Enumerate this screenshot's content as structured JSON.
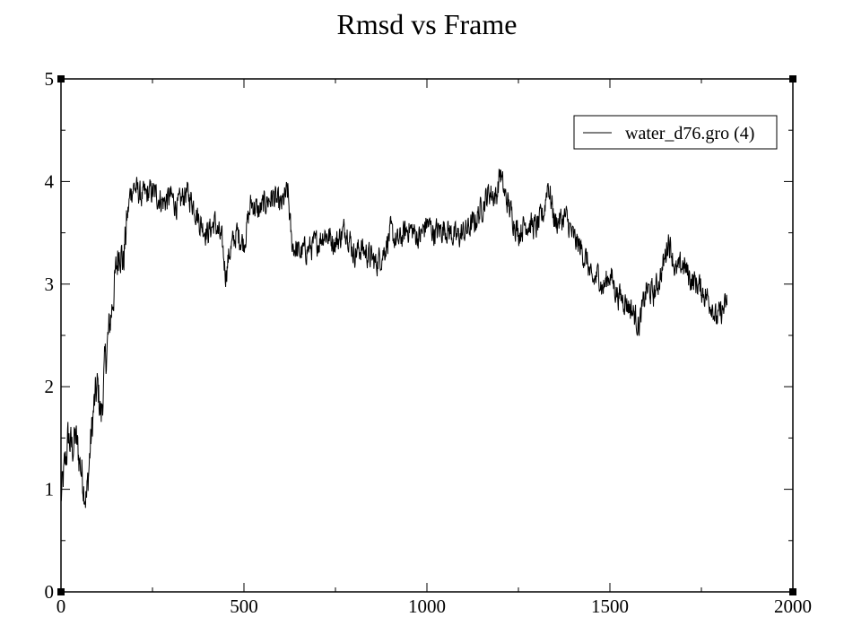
{
  "chart_data": {
    "type": "line",
    "title": "Rmsd vs Frame",
    "xlabel": "",
    "ylabel": "",
    "xlim": [
      0,
      2000
    ],
    "ylim": [
      0,
      5
    ],
    "x_major_ticks": [
      0,
      500,
      1000,
      1500,
      2000
    ],
    "x_tick_labels": [
      "0",
      "500",
      "1000",
      "1500",
      "2000"
    ],
    "y_major_ticks": [
      0,
      1,
      2,
      3,
      4,
      5
    ],
    "y_tick_labels": [
      "0",
      "1",
      "2",
      "3",
      "4",
      "5"
    ],
    "grid": false,
    "legend_position": "top-right",
    "series": [
      {
        "name": "water_d76.gro (4)",
        "color": "#000000",
        "x": [
          0,
          10,
          20,
          30,
          40,
          50,
          60,
          70,
          80,
          90,
          100,
          110,
          120,
          130,
          140,
          150,
          160,
          170,
          180,
          190,
          200,
          220,
          250,
          280,
          300,
          320,
          340,
          360,
          380,
          400,
          420,
          440,
          450,
          460,
          480,
          500,
          520,
          540,
          560,
          580,
          600,
          620,
          630,
          650,
          680,
          700,
          720,
          750,
          780,
          800,
          820,
          850,
          860,
          880,
          900,
          920,
          950,
          980,
          1000,
          1020,
          1050,
          1080,
          1100,
          1130,
          1150,
          1170,
          1190,
          1200,
          1210,
          1230,
          1250,
          1270,
          1300,
          1320,
          1330,
          1350,
          1380,
          1400,
          1420,
          1440,
          1450,
          1470,
          1480,
          1500,
          1520,
          1540,
          1560,
          1580,
          1600,
          1620,
          1640,
          1650,
          1660,
          1670,
          1680,
          1700,
          1720,
          1740,
          1760,
          1780,
          1790,
          1800,
          1810,
          1820
        ],
        "values": [
          0.9,
          1.2,
          1.5,
          1.4,
          1.5,
          1.3,
          1.1,
          0.9,
          1.4,
          1.8,
          2.0,
          1.7,
          2.2,
          2.5,
          2.8,
          3.1,
          3.4,
          3.2,
          3.6,
          3.9,
          3.95,
          3.85,
          3.9,
          3.8,
          3.85,
          3.75,
          3.9,
          3.8,
          3.6,
          3.5,
          3.6,
          3.4,
          3.1,
          3.3,
          3.5,
          3.4,
          3.8,
          3.7,
          3.8,
          3.85,
          3.75,
          3.9,
          3.4,
          3.3,
          3.35,
          3.4,
          3.5,
          3.4,
          3.55,
          3.3,
          3.35,
          3.25,
          3.2,
          3.3,
          3.5,
          3.4,
          3.55,
          3.45,
          3.6,
          3.5,
          3.55,
          3.45,
          3.5,
          3.6,
          3.75,
          3.9,
          3.85,
          4.1,
          3.9,
          3.7,
          3.5,
          3.6,
          3.55,
          3.7,
          4.0,
          3.6,
          3.65,
          3.45,
          3.35,
          3.2,
          3.0,
          3.1,
          2.95,
          3.1,
          2.9,
          2.85,
          2.75,
          2.6,
          2.95,
          2.9,
          3.1,
          3.25,
          3.45,
          3.3,
          3.1,
          3.2,
          3.05,
          3.0,
          2.9,
          2.8,
          2.65,
          2.7,
          2.75,
          2.8
        ]
      }
    ]
  }
}
